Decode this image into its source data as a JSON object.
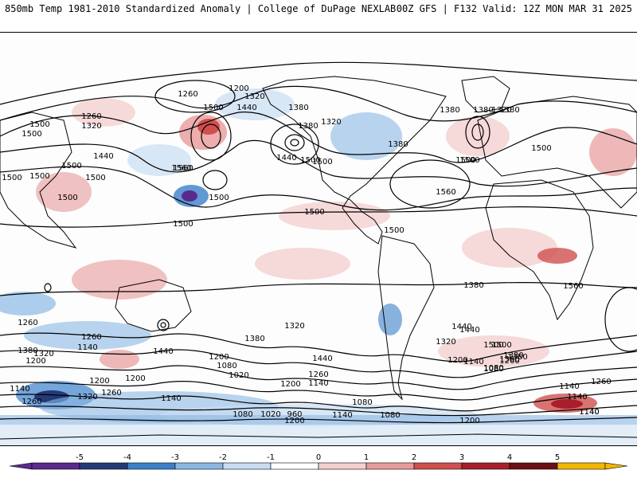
{
  "header": {
    "left_title": "850mb Temp 1981-2010 Standardized Anomaly | College of DuPage NEXLAB",
    "right_title": "00Z GFS | F132 Valid: 12Z MON MAR 31 2025"
  },
  "colorbar": {
    "tick_labels": [
      "-5",
      "-4",
      "-3",
      "-2",
      "-1",
      "0",
      "1",
      "2",
      "3",
      "4",
      "5"
    ],
    "colors": [
      "#5a2a8e",
      "#243a78",
      "#3b7fc9",
      "#8ab8e4",
      "#c7ddf2",
      "#ffffff",
      "#f4cfcf",
      "#e89a9a",
      "#d0504e",
      "#a81e2a",
      "#6e0e16",
      "#f2b800"
    ]
  },
  "contour_labels": [
    "1200",
    "1260",
    "1320",
    "1380",
    "1500",
    "1440",
    "1380",
    "1320",
    "1380",
    "1440",
    "1380",
    "1380",
    "1320",
    "1500",
    "1320",
    "1260",
    "1500",
    "1560",
    "1440",
    "1500",
    "1560",
    "1500",
    "1380",
    "1500",
    "1500",
    "1500",
    "1500",
    "1500",
    "1500",
    "1560",
    "1500",
    "1500",
    "1500",
    "1500",
    "1500",
    "1500",
    "1320",
    "1380",
    "1380",
    "1440",
    "1440",
    "1320",
    "1500",
    "1380",
    "1260",
    "1380",
    "1320",
    "1140",
    "1260",
    "1200",
    "1440",
    "1200",
    "1080",
    "1020",
    "1260",
    "1140",
    "1200",
    "1140",
    "1080",
    "1200",
    "1140",
    "1260",
    "1140",
    "1320",
    "1260",
    "1200",
    "1080",
    "1020",
    "960",
    "1080",
    "1140",
    "1080",
    "1140",
    "1260",
    "1200",
    "1200",
    "1200",
    "1080",
    "1140",
    "1140",
    "1380",
    "1440",
    "1500",
    "1380",
    "1260",
    "1560",
    "1140"
  ]
}
